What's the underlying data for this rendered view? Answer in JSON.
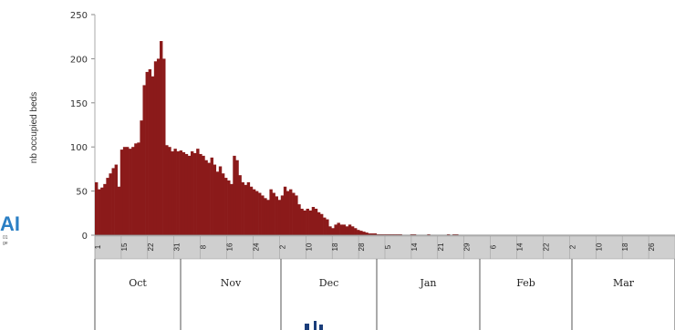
{
  "chart_data": {
    "type": "bar",
    "ylabel": "nb occupied beds",
    "ylim": [
      0,
      250
    ],
    "yticks": [
      0,
      50,
      100,
      150,
      200,
      250
    ],
    "bar_color": "#8b1a1a",
    "date_labels": [
      "1",
      "15",
      "22",
      "31",
      "8",
      "16",
      "24",
      "2",
      "10",
      "18",
      "28",
      "5",
      "14",
      "21",
      "29",
      "6",
      "14",
      "22",
      "2",
      "10",
      "18",
      "26"
    ],
    "months": [
      "Oct",
      "Nov",
      "Dec",
      "Jan",
      "Feb",
      "Mar"
    ],
    "values": [
      60,
      52,
      54,
      58,
      65,
      70,
      76,
      80,
      55,
      97,
      100,
      100,
      98,
      100,
      104,
      105,
      130,
      170,
      185,
      188,
      180,
      197,
      200,
      220,
      200,
      102,
      100,
      95,
      98,
      95,
      96,
      94,
      92,
      90,
      95,
      93,
      98,
      92,
      90,
      85,
      82,
      88,
      80,
      72,
      78,
      70,
      65,
      62,
      58,
      90,
      85,
      68,
      60,
      57,
      60,
      55,
      52,
      50,
      48,
      45,
      42,
      40,
      52,
      48,
      44,
      40,
      45,
      55,
      50,
      52,
      48,
      45,
      35,
      30,
      28,
      30,
      28,
      32,
      30,
      26,
      24,
      20,
      18,
      10,
      8,
      12,
      14,
      12,
      12,
      10,
      12,
      10,
      8,
      6,
      5,
      4,
      3,
      2,
      2,
      2,
      1,
      1,
      1,
      1,
      1,
      1,
      1,
      1,
      1,
      0,
      0,
      0,
      1,
      1,
      0,
      0,
      0,
      0,
      1,
      0,
      0,
      0,
      0,
      0,
      0,
      1,
      0,
      1,
      1,
      0,
      0,
      0,
      0,
      0,
      0,
      0,
      0,
      0,
      0,
      0,
      0,
      0,
      0,
      0,
      0,
      0,
      0,
      0,
      0,
      0,
      0,
      0,
      0,
      0,
      0,
      0,
      0,
      0,
      0,
      0,
      0,
      0,
      0,
      0,
      0,
      0,
      0,
      0,
      0,
      0,
      0,
      0,
      0,
      0,
      0,
      0,
      0,
      0,
      0,
      0,
      0,
      0,
      0,
      0,
      0,
      0,
      0,
      0,
      0,
      0,
      0,
      0,
      0,
      0,
      0,
      0,
      0,
      0,
      0,
      0,
      0,
      0,
      0,
      0,
      0,
      0
    ]
  },
  "logo": {
    "text": "AI",
    "line1": "01",
    "line2": "ge"
  }
}
